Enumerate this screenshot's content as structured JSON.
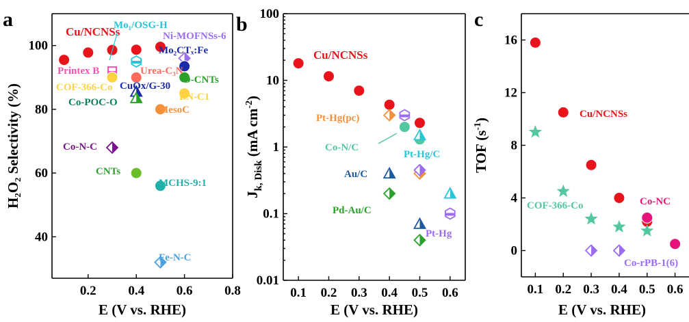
{
  "colors": {
    "red": "#e8131b",
    "pink": "#ff4fb5",
    "salmon": "#ff6a5a",
    "yellow": "#ffd340",
    "teal_dark": "#0a7f5a",
    "green": "#2aa22a",
    "navy": "#1a2aa8",
    "cyan": "#27c6d6",
    "purple": "#9b6bf0",
    "orange": "#f5913b",
    "violet": "#7a148a",
    "lime": "#6cbd2a",
    "teal": "#20b2aa",
    "skyblue": "#4aa3df",
    "seafoam": "#53c7a0",
    "blue": "#1e5aa0",
    "magenta": "#e6147a"
  },
  "chart_data": [
    {
      "panel": "a",
      "type": "scatter",
      "ylabel": "H₂O₂ Selectivity (%)",
      "xlabel": "E (V vs. RHE)",
      "xlim": [
        0.05,
        0.8
      ],
      "ylim": [
        27,
        110
      ],
      "xticks": [
        "0.2",
        "0.4",
        "0.6",
        "0.8"
      ],
      "yticks": [
        "40",
        "60",
        "80",
        "100"
      ],
      "grid": false,
      "series": [
        {
          "name": "Cu/NCNSs",
          "marker": "circle",
          "color": "red",
          "x": [
            0.1,
            0.2,
            0.3,
            0.4,
            0.5
          ],
          "y": [
            95.5,
            97.8,
            98.6,
            98.7,
            99.6
          ]
        },
        {
          "name": "Printex B",
          "marker": "square",
          "color": "pink",
          "x": [
            0.3
          ],
          "y": [
            92
          ]
        },
        {
          "name": "Urea-C₃N",
          "marker": "circle",
          "color": "salmon",
          "x": [
            0.4
          ],
          "y": [
            90
          ]
        },
        {
          "name": "COF-366-Co",
          "marker": "circle",
          "color": "yellow",
          "x": [
            0.3
          ],
          "y": [
            90
          ]
        },
        {
          "name": "Mo₁/OSG-H",
          "marker": "hexagon",
          "color": "cyan",
          "x": [
            0.4
          ],
          "y": [
            95
          ]
        },
        {
          "name": "Ni-MOFNSs-6",
          "marker": "diamond",
          "color": "purple",
          "x": [
            0.6
          ],
          "y": [
            96
          ]
        },
        {
          "name": "Mo₂CTₓ:Fe",
          "marker": "circle",
          "color": "navy",
          "x": [
            0.6
          ],
          "y": [
            93.5
          ]
        },
        {
          "name": "O-CNTs",
          "marker": "circle",
          "color": "green",
          "x": [
            0.6
          ],
          "y": [
            90
          ]
        },
        {
          "name": "CuOx/G-30",
          "marker": "triangle",
          "color": "navy",
          "x": [
            0.4
          ],
          "y": [
            85.5
          ]
        },
        {
          "name": "Co-POC-O",
          "marker": "triangle",
          "color": "green",
          "x": [
            0.4
          ],
          "y": [
            83.5
          ]
        },
        {
          "name": "BN-C1",
          "marker": "circle",
          "color": "yellow",
          "x": [
            0.6
          ],
          "y": [
            85
          ]
        },
        {
          "name": "MesoC",
          "marker": "circle",
          "color": "orange",
          "x": [
            0.5
          ],
          "y": [
            80
          ]
        },
        {
          "name": "Co-N-C",
          "marker": "diamond",
          "color": "violet",
          "x": [
            0.3
          ],
          "y": [
            68
          ]
        },
        {
          "name": "CNTs",
          "marker": "circle",
          "color": "lime",
          "x": [
            0.4
          ],
          "y": [
            60
          ]
        },
        {
          "name": "MCHS-9:1",
          "marker": "circle",
          "color": "teal",
          "x": [
            0.5
          ],
          "y": [
            56
          ]
        },
        {
          "name": "Fe-N-C",
          "marker": "diamond",
          "color": "skyblue",
          "x": [
            0.5
          ],
          "y": [
            32
          ]
        }
      ]
    },
    {
      "panel": "b",
      "type": "scatter",
      "ylabel_main": "J",
      "ylabel_sub": "k, Disk",
      "ylabel_unit": "(mA cm",
      "ylabel_sup": "-2",
      "ylabel_end": ")",
      "xlabel": "E (V vs. RHE)",
      "xlim": [
        0.05,
        0.65
      ],
      "ylim": [
        0.01,
        100
      ],
      "yscale": "log",
      "xticks": [
        "0.1",
        "0.2",
        "0.3",
        "0.4",
        "0.5",
        "0.6"
      ],
      "yticks": [
        "0.01",
        "0.1",
        "1",
        "10",
        "100"
      ],
      "grid": false,
      "series": [
        {
          "name": "Cu/NCNSs",
          "marker": "circle",
          "color": "red",
          "x": [
            0.1,
            0.2,
            0.3,
            0.4,
            0.5
          ],
          "y": [
            18,
            11.5,
            7,
            4.3,
            2.3
          ]
        },
        {
          "name": "Pt-Hg(pc)",
          "marker": "diamond",
          "color": "orange",
          "x": [
            0.4,
            0.5
          ],
          "y": [
            3.0,
            0.4
          ]
        },
        {
          "name": "Pt-Hg(pc) hex",
          "marker": "hexagon",
          "color": "purple",
          "x": [
            0.45,
            0.6
          ],
          "y": [
            3.0,
            0.1
          ]
        },
        {
          "name": "Co-N/C",
          "marker": "circle",
          "color": "seafoam",
          "x": [
            0.45,
            0.5
          ],
          "y": [
            2.0,
            1.3
          ]
        },
        {
          "name": "Pt-Hg/C",
          "marker": "triangle",
          "color": "cyan",
          "x": [
            0.5,
            0.6
          ],
          "y": [
            1.5,
            0.2
          ]
        },
        {
          "name": "Pt-Hg/C diamond",
          "marker": "diamond",
          "color": "purple",
          "x": [
            0.5
          ],
          "y": [
            0.45
          ]
        },
        {
          "name": "Au/C",
          "marker": "triangle",
          "color": "blue",
          "x": [
            0.4,
            0.5
          ],
          "y": [
            0.4,
            0.07
          ]
        },
        {
          "name": "Pd-Au/C",
          "marker": "diamond",
          "color": "green",
          "x": [
            0.4,
            0.5
          ],
          "y": [
            0.2,
            0.04
          ]
        }
      ]
    },
    {
      "panel": "c",
      "type": "scatter",
      "ylabel_main": "TOF (s",
      "ylabel_sup": "-1",
      "ylabel_end": ")",
      "xlabel": "E (V vs. RHE)",
      "xlim": [
        0.05,
        0.65
      ],
      "ylim": [
        -2,
        18
      ],
      "xticks": [
        "0.1",
        "0.2",
        "0.3",
        "0.4",
        "0.5",
        "0.6"
      ],
      "yticks": [
        "0",
        "4",
        "8",
        "12",
        "16"
      ],
      "grid": false,
      "series": [
        {
          "name": "Cu/NCNSs",
          "marker": "circle",
          "color": "red",
          "x": [
            0.1,
            0.2,
            0.3,
            0.4,
            0.5
          ],
          "y": [
            15.8,
            10.5,
            6.5,
            4.0,
            2.2
          ]
        },
        {
          "name": "COF-366-Co",
          "marker": "star",
          "color": "seafoam",
          "x": [
            0.1,
            0.2,
            0.3,
            0.4,
            0.5
          ],
          "y": [
            9.0,
            4.5,
            2.4,
            1.8,
            1.5
          ]
        },
        {
          "name": "Co-NC",
          "marker": "circle",
          "color": "magenta",
          "x": [
            0.5,
            0.6
          ],
          "y": [
            2.5,
            0.5
          ]
        },
        {
          "name": "Co-rPB-1(6)",
          "marker": "diamond",
          "color": "purple",
          "x": [
            0.3,
            0.4
          ],
          "y": [
            0.0,
            0.0
          ]
        }
      ]
    }
  ],
  "labels_a": [
    {
      "text": "Cu/NCNSs",
      "color": "red"
    },
    {
      "text": "Printex B",
      "color": "pink"
    },
    {
      "text": "Urea-C₃N",
      "color": "salmon"
    },
    {
      "text": "COF-366-Co",
      "color": "yellow"
    },
    {
      "text": "Mo₁/OSG-H",
      "color": "cyan"
    },
    {
      "text": "Ni-MOFNSs-6",
      "color": "purple"
    },
    {
      "text": "Mo₂CTₓ:Fe",
      "color": "navy"
    },
    {
      "text": "O-CNTs",
      "color": "green"
    },
    {
      "text": "CuOx/G-30",
      "color": "navy"
    },
    {
      "text": "Co-POC-O",
      "color": "teal_dark"
    },
    {
      "text": "BN-C1",
      "color": "yellow"
    },
    {
      "text": "MesoC",
      "color": "orange"
    },
    {
      "text": "Co-N-C",
      "color": "violet"
    },
    {
      "text": "CNTs",
      "color": "green"
    },
    {
      "text": "MCHS-9:1",
      "color": "teal"
    },
    {
      "text": "Fe-N-C",
      "color": "skyblue"
    }
  ],
  "labels_b": [
    {
      "text": "Cu/NCNSs",
      "color": "red"
    },
    {
      "text": "Pt-Hg(pc)",
      "color": "orange"
    },
    {
      "text": "Co-N/C",
      "color": "seafoam"
    },
    {
      "text": "Pt-Hg/C",
      "color": "cyan"
    },
    {
      "text": "Au/C",
      "color": "blue"
    },
    {
      "text": "Pd-Au/C",
      "color": "green"
    },
    {
      "text": "Pt-Hg",
      "color": "purple"
    }
  ],
  "labels_c": [
    {
      "text": "Cu/NCNSs",
      "color": "red"
    },
    {
      "text": "COF-366-Co",
      "color": "seafoam"
    },
    {
      "text": "Co-NC",
      "color": "magenta"
    },
    {
      "text": "Co-rPB-1(6)",
      "color": "purple"
    }
  ],
  "panel_letters": [
    "a",
    "b",
    "c"
  ]
}
